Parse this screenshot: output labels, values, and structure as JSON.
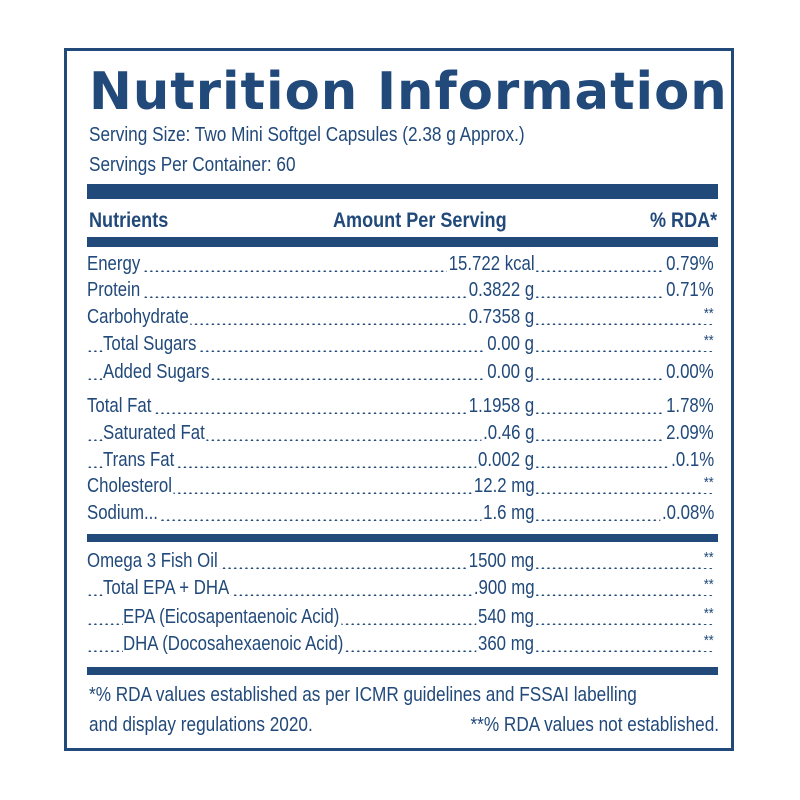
{
  "label": {
    "title": "Nutrition Information",
    "serving_size": "Serving Size: Two Mini Softgel Capsules (2.38 g Approx.)",
    "servings_per_container": "Servings Per Container: 60",
    "accent_color": "#21497a",
    "columns": {
      "nutrients": "Nutrients",
      "amount": "Amount Per Serving",
      "rda": "% RDA*"
    },
    "rows": [
      {
        "name": "Energy",
        "amount": "15.722 kcal",
        "rda": "0.79%",
        "indent": 0
      },
      {
        "name": "Protein",
        "amount": "0.3822 g",
        "rda": "0.71%",
        "indent": 0
      },
      {
        "name": "Carbohydrate",
        "amount": "0.7358 g",
        "rda": "**",
        "indent": 0
      },
      {
        "name": "Total Sugars",
        "amount": "0.00 g",
        "rda": "**",
        "indent": 1
      },
      {
        "name": "Added Sugars",
        "amount": "0.00 g",
        "rda": "0.00%",
        "indent": 1
      },
      {
        "name": "Total Fat",
        "amount": "1.1958 g",
        "rda": "1.78%",
        "indent": 0
      },
      {
        "name": "Saturated Fat",
        "amount": ".0.46 g",
        "rda": "2.09%",
        "indent": 1
      },
      {
        "name": "Trans Fat",
        "amount": "0.002 g",
        "rda": ".0.1%",
        "indent": 1
      },
      {
        "name": "Cholesterol",
        "amount": "12.2 mg",
        "rda": "**",
        "indent": 0
      },
      {
        "name": "Sodium...",
        "amount": "1.6 mg",
        "rda": ".0.08%",
        "indent": 0
      }
    ],
    "omega_rows": [
      {
        "name": "Omega 3 Fish Oil",
        "amount": "1500 mg",
        "rda": "**",
        "indent": 0
      },
      {
        "name": "Total EPA + DHA",
        "amount": ".900 mg",
        "rda": "**",
        "indent": 1
      },
      {
        "name": "EPA (Eicosapentaenoic Acid)",
        "amount": "540 mg",
        "rda": "**",
        "indent": 2
      },
      {
        "name": "DHA (Docosahexaenoic Acid)",
        "amount": "360 mg",
        "rda": "**",
        "indent": 2
      }
    ],
    "footnote": {
      "line1": "*% RDA values established as per ICMR guidelines and FSSAI labelling",
      "line2_left": "and display regulations 2020.",
      "line2_right": "**% RDA values not established."
    }
  }
}
